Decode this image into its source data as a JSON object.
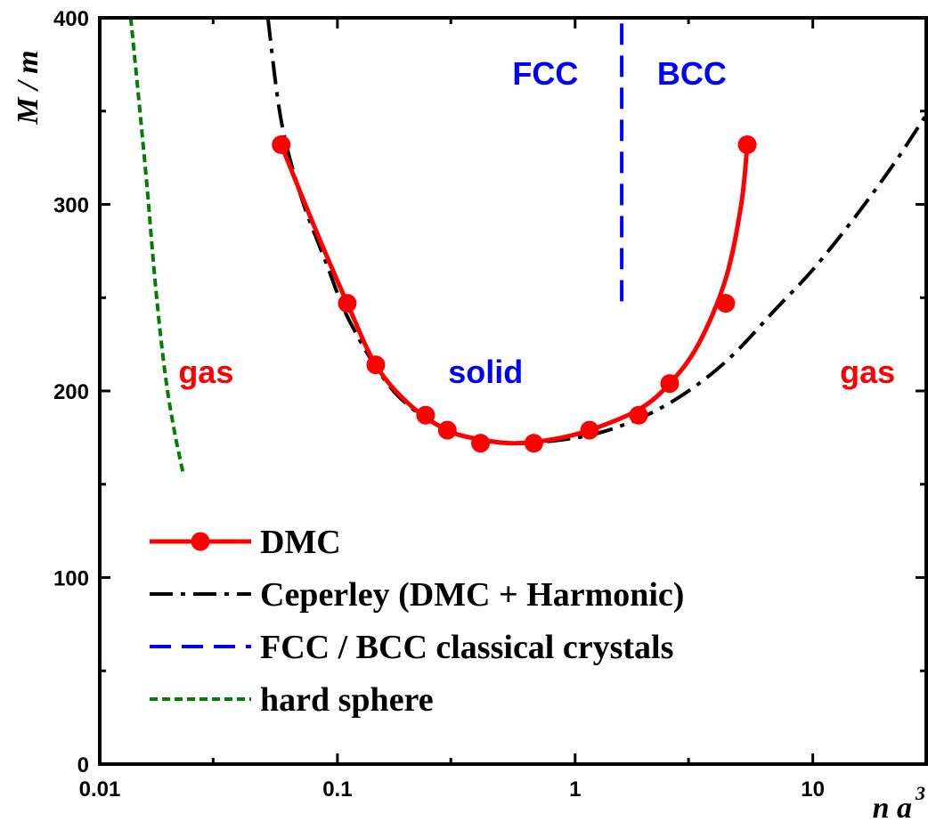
{
  "chart_data": {
    "type": "line",
    "xscale": "log",
    "xlim": [
      0.01,
      30
    ],
    "ylim": [
      0,
      400
    ],
    "xlabel": "n a",
    "xlabel_sup": "3",
    "ylabel": "M / m",
    "x_ticks": [
      {
        "value": 0.01,
        "label": "0.01"
      },
      {
        "value": 0.1,
        "label": "0.1"
      },
      {
        "value": 1,
        "label": "1"
      },
      {
        "value": 10,
        "label": "10"
      }
    ],
    "y_ticks": [
      {
        "value": 0,
        "label": "0"
      },
      {
        "value": 100,
        "label": "100"
      },
      {
        "value": 200,
        "label": "200"
      },
      {
        "value": 300,
        "label": "300"
      },
      {
        "value": 400,
        "label": "400"
      }
    ],
    "legend_position": "bottom-left",
    "series": [
      {
        "name": "DMC",
        "color": "#ff0000",
        "style": "solid-line-with-markers",
        "points": [
          [
            0.058,
            332
          ],
          [
            0.11,
            247
          ],
          [
            0.145,
            214
          ],
          [
            0.235,
            187
          ],
          [
            0.29,
            179
          ],
          [
            0.4,
            172
          ],
          [
            0.67,
            172
          ],
          [
            1.15,
            179
          ],
          [
            1.85,
            187
          ],
          [
            2.5,
            204
          ],
          [
            4.3,
            247
          ],
          [
            5.3,
            332
          ]
        ],
        "curve": [
          [
            0.058,
            332
          ],
          [
            0.08,
            288
          ],
          [
            0.11,
            247
          ],
          [
            0.145,
            214
          ],
          [
            0.2,
            193
          ],
          [
            0.29,
            179
          ],
          [
            0.4,
            174
          ],
          [
            0.55,
            172
          ],
          [
            0.8,
            174
          ],
          [
            1.15,
            179
          ],
          [
            1.85,
            190
          ],
          [
            2.5,
            204
          ],
          [
            3.3,
            225
          ],
          [
            4.3,
            260
          ],
          [
            5.0,
            300
          ],
          [
            5.3,
            332
          ]
        ]
      },
      {
        "name": "Ceperley (DMC + Harmonic)",
        "color": "#000000",
        "style": "dash-dot",
        "curve": [
          [
            0.051,
            400
          ],
          [
            0.058,
            345
          ],
          [
            0.07,
            305
          ],
          [
            0.09,
            268
          ],
          [
            0.11,
            240
          ],
          [
            0.15,
            210
          ],
          [
            0.2,
            192
          ],
          [
            0.3,
            178
          ],
          [
            0.45,
            173
          ],
          [
            0.6,
            172
          ],
          [
            0.9,
            174
          ],
          [
            1.3,
            178
          ],
          [
            2,
            187
          ],
          [
            3,
            200
          ],
          [
            4.5,
            218
          ],
          [
            7,
            244
          ],
          [
            10,
            265
          ],
          [
            15,
            293
          ],
          [
            22,
            322
          ],
          [
            30,
            348
          ]
        ]
      },
      {
        "name": "FCC / BCC classical crystals",
        "color": "#0000ff",
        "style": "dashed",
        "curve": [
          [
            1.57,
            248
          ],
          [
            1.57,
            400
          ]
        ]
      },
      {
        "name": "hard sphere",
        "color": "#008000",
        "style": "short-dash",
        "curve": [
          [
            0.0135,
            400
          ],
          [
            0.0145,
            360
          ],
          [
            0.0158,
            310
          ],
          [
            0.0172,
            255
          ],
          [
            0.0188,
            210
          ],
          [
            0.0205,
            180
          ],
          [
            0.0225,
            155
          ]
        ]
      }
    ],
    "annotations": [
      {
        "text": "gas",
        "x": 0.028,
        "y": 210,
        "color": "#ff0000"
      },
      {
        "text": "solid",
        "x": 0.42,
        "y": 210,
        "color": "#0000ff"
      },
      {
        "text": "gas",
        "x": 17,
        "y": 210,
        "color": "#ff0000"
      },
      {
        "text": "FCC",
        "x": 0.75,
        "y": 370,
        "color": "#0000ff"
      },
      {
        "text": "BCC",
        "x": 3.1,
        "y": 370,
        "color": "#0000ff"
      }
    ]
  }
}
